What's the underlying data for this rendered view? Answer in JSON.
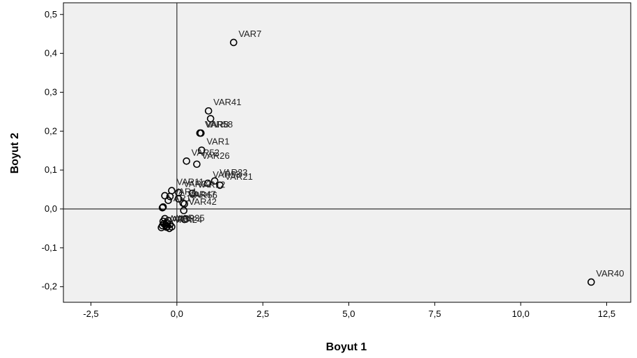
{
  "chart_data": {
    "type": "scatter",
    "xlabel": "Boyut  1",
    "ylabel": "Boyut  2",
    "xlim": [
      -3.3,
      13.2
    ],
    "ylim": [
      -0.24,
      0.53
    ],
    "xticks": [
      -2.5,
      0.0,
      2.5,
      5.0,
      7.5,
      10.0,
      12.5
    ],
    "xtick_labels": [
      "-2,5",
      "0,0",
      "2,5",
      "5,0",
      "7,5",
      "10,0",
      "12,5"
    ],
    "yticks": [
      -0.2,
      -0.1,
      0.0,
      0.1,
      0.2,
      0.3,
      0.4,
      0.5
    ],
    "ytick_labels": [
      "-0,2",
      "-0,1",
      "0,0",
      "0,1",
      "0,2",
      "0,3",
      "0,4",
      "0,5"
    ],
    "reference_lines": {
      "x": 0,
      "y": 0
    },
    "grid": false,
    "plot_background": "#f0f0f0",
    "points": [
      {
        "label": "VAR7",
        "x": 1.65,
        "y": 0.428
      },
      {
        "label": "VAR41",
        "x": 0.92,
        "y": 0.252
      },
      {
        "label": "",
        "x": 0.98,
        "y": 0.232
      },
      {
        "label": "VAR58",
        "x": 0.67,
        "y": 0.195
      },
      {
        "label": "VAR8",
        "x": 0.7,
        "y": 0.195
      },
      {
        "label": "VAR1",
        "x": 0.72,
        "y": 0.151
      },
      {
        "label": "VAR52",
        "x": 0.28,
        "y": 0.123
      },
      {
        "label": "VAR26",
        "x": 0.58,
        "y": 0.115
      },
      {
        "label": "VAR33",
        "x": 1.1,
        "y": 0.072
      },
      {
        "label": "VAR21",
        "x": 1.25,
        "y": 0.061
      },
      {
        "label": "VAR53",
        "x": 0.9,
        "y": 0.066
      },
      {
        "label": "VAR11",
        "x": -0.15,
        "y": 0.047
      },
      {
        "label": "VAR32",
        "x": 0.05,
        "y": 0.042
      },
      {
        "label": "",
        "x": -0.35,
        "y": 0.034
      },
      {
        "label": "",
        "x": -0.2,
        "y": 0.032
      },
      {
        "label": "VAR12",
        "x": 0.45,
        "y": 0.04
      },
      {
        "label": "",
        "x": 0.05,
        "y": 0.026
      },
      {
        "label": "VAR4",
        "x": -0.25,
        "y": 0.022
      },
      {
        "label": "VAR47",
        "x": 0.18,
        "y": 0.015
      },
      {
        "label": "VAR56",
        "x": 0.22,
        "y": 0.013
      },
      {
        "label": "VAR17",
        "x": -0.4,
        "y": 0.005
      },
      {
        "label": "",
        "x": -0.42,
        "y": 0.003
      },
      {
        "label": "VAR42",
        "x": 0.2,
        "y": -0.004
      },
      {
        "label": "",
        "x": 0.22,
        "y": -0.027
      },
      {
        "label": "",
        "x": -0.35,
        "y": -0.025
      },
      {
        "label": "",
        "x": -0.25,
        "y": -0.03
      },
      {
        "label": "",
        "x": -0.3,
        "y": -0.035
      },
      {
        "label": "",
        "x": -0.38,
        "y": -0.038
      },
      {
        "label": "",
        "x": -0.42,
        "y": -0.043
      },
      {
        "label": "",
        "x": -0.28,
        "y": -0.045
      },
      {
        "label": "",
        "x": -0.33,
        "y": -0.042
      },
      {
        "label": "",
        "x": -0.2,
        "y": -0.04
      },
      {
        "label": "",
        "x": -0.4,
        "y": -0.032
      },
      {
        "label": "VAR35",
        "x": -0.15,
        "y": -0.046
      },
      {
        "label": "VAR24",
        "x": -0.22,
        "y": -0.05
      },
      {
        "label": "VAR3",
        "x": -0.45,
        "y": -0.048
      },
      {
        "label": "VAR9",
        "x": -0.3,
        "y": -0.047
      },
      {
        "label": "VAR40",
        "x": 12.05,
        "y": -0.188
      }
    ]
  }
}
